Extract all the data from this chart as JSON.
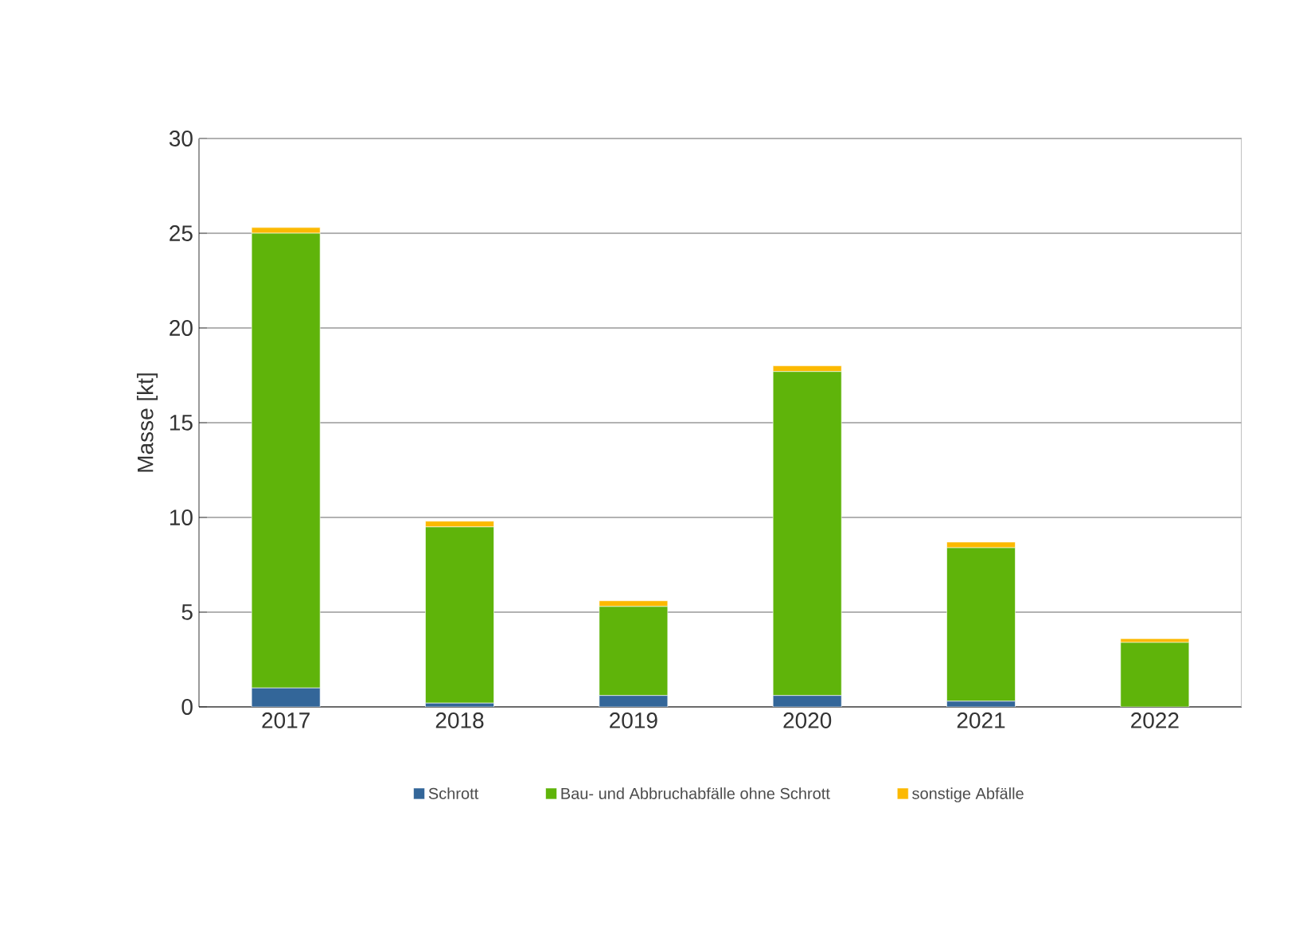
{
  "chart_data": {
    "type": "bar",
    "stacked": true,
    "ylabel": "Masse [kt]",
    "categories": [
      "2017",
      "2018",
      "2019",
      "2020",
      "2021",
      "2022"
    ],
    "series": [
      {
        "name": "Schrott",
        "color": "#336699",
        "values": [
          1.0,
          0.2,
          0.6,
          0.6,
          0.3,
          0
        ]
      },
      {
        "name": "Bau- und Abbruchabfälle ohne Schrott",
        "color": "#5fb40a",
        "values": [
          24.0,
          9.3,
          4.7,
          17.1,
          8.1,
          3.4
        ]
      },
      {
        "name": "sonstige Abfälle",
        "color": "#fcb900",
        "values": [
          0.3,
          0.3,
          0.3,
          0.3,
          0.3,
          0.2
        ]
      }
    ],
    "ylim": [
      0,
      30
    ],
    "yticks": [
      0,
      5,
      10,
      15,
      20,
      25,
      30
    ],
    "grid": "y",
    "legend": "bottom"
  }
}
